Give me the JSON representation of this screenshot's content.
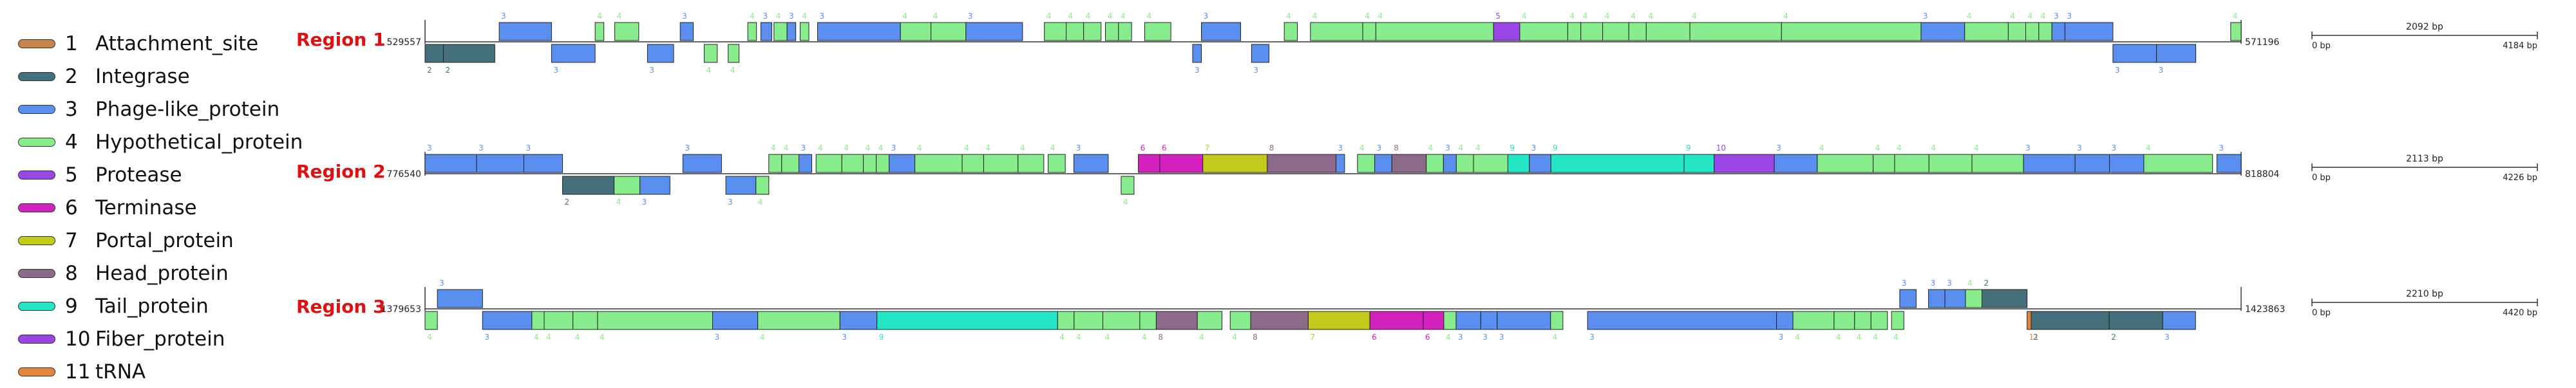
{
  "legend": [
    {
      "num": "1",
      "label": "Attachment_site",
      "color": "#c8834a"
    },
    {
      "num": "2",
      "label": "Integrase",
      "color": "#44707c"
    },
    {
      "num": "3",
      "label": "Phage-like_protein",
      "color": "#5a8ff0"
    },
    {
      "num": "4",
      "label": "Hypothetical_protein",
      "color": "#86ec8c"
    },
    {
      "num": "5",
      "label": "Protease",
      "color": "#9a46e6"
    },
    {
      "num": "6",
      "label": "Terminase",
      "color": "#d421c0"
    },
    {
      "num": "7",
      "label": "Portal_protein",
      "color": "#c2cb1a"
    },
    {
      "num": "8",
      "label": "Head_protein",
      "color": "#8e6a8a"
    },
    {
      "num": "9",
      "label": "Tail_protein",
      "color": "#22e6c6"
    },
    {
      "num": "10",
      "label": "Fiber_protein",
      "color": "#9a46e6"
    },
    {
      "num": "11",
      "label": "tRNA",
      "color": "#e3853a"
    }
  ],
  "chart_data": [
    {
      "type": "genome_map",
      "title": "Region 1",
      "start_label": "529557",
      "end_label": "571196",
      "scale_label": "2092 bp",
      "scale_start": "0 bp",
      "scale_end": "4184 bp",
      "span_bp": 41639,
      "genes": [
        {
          "s": 0,
          "e": 420,
          "strand": -1,
          "type": "2"
        },
        {
          "s": 420,
          "e": 1600,
          "strand": -1,
          "type": "2"
        },
        {
          "s": 1700,
          "e": 2900,
          "strand": 1,
          "type": "3"
        },
        {
          "s": 2900,
          "e": 3900,
          "strand": -1,
          "type": "3"
        },
        {
          "s": 3900,
          "e": 4100,
          "strand": 1,
          "type": "4"
        },
        {
          "s": 4350,
          "e": 4900,
          "strand": 1,
          "type": "4"
        },
        {
          "s": 5100,
          "e": 5700,
          "strand": -1,
          "type": "3"
        },
        {
          "s": 5850,
          "e": 6150,
          "strand": 1,
          "type": "3"
        },
        {
          "s": 6400,
          "e": 6700,
          "strand": -1,
          "type": "4"
        },
        {
          "s": 6950,
          "e": 7200,
          "strand": -1,
          "type": "4"
        },
        {
          "s": 7400,
          "e": 7600,
          "strand": 1,
          "type": "4"
        },
        {
          "s": 7700,
          "e": 7950,
          "strand": 1,
          "type": "3"
        },
        {
          "s": 8000,
          "e": 8300,
          "strand": 1,
          "type": "4"
        },
        {
          "s": 8300,
          "e": 8500,
          "strand": 1,
          "type": "3"
        },
        {
          "s": 8600,
          "e": 8800,
          "strand": 1,
          "type": "4"
        },
        {
          "s": 9000,
          "e": 10900,
          "strand": 1,
          "type": "3"
        },
        {
          "s": 10900,
          "e": 11600,
          "strand": 1,
          "type": "4"
        },
        {
          "s": 11600,
          "e": 12400,
          "strand": 1,
          "type": "4"
        },
        {
          "s": 12400,
          "e": 13700,
          "strand": 1,
          "type": "3"
        },
        {
          "s": 14200,
          "e": 14700,
          "strand": 1,
          "type": "4"
        },
        {
          "s": 14700,
          "e": 15100,
          "strand": 1,
          "type": "4"
        },
        {
          "s": 15100,
          "e": 15500,
          "strand": 1,
          "type": "4"
        },
        {
          "s": 15600,
          "e": 15900,
          "strand": 1,
          "type": "4"
        },
        {
          "s": 15900,
          "e": 16200,
          "strand": 1,
          "type": "4"
        },
        {
          "s": 16500,
          "e": 17100,
          "strand": 1,
          "type": "4"
        },
        {
          "s": 17600,
          "e": 17800,
          "strand": -1,
          "type": "3"
        },
        {
          "s": 17800,
          "e": 18700,
          "strand": 1,
          "type": "3"
        },
        {
          "s": 18950,
          "e": 19350,
          "strand": -1,
          "type": "3"
        },
        {
          "s": 19700,
          "e": 20000,
          "strand": 1,
          "type": "4"
        },
        {
          "s": 20300,
          "e": 21500,
          "strand": 1,
          "type": "4"
        },
        {
          "s": 21500,
          "e": 21800,
          "strand": 1,
          "type": "4"
        },
        {
          "s": 21800,
          "e": 24500,
          "strand": 1,
          "type": "4"
        },
        {
          "s": 24500,
          "e": 25100,
          "strand": 1,
          "type": "5"
        },
        {
          "s": 25100,
          "e": 26200,
          "strand": 1,
          "type": "4"
        },
        {
          "s": 26200,
          "e": 26500,
          "strand": 1,
          "type": "4"
        },
        {
          "s": 26500,
          "e": 27000,
          "strand": 1,
          "type": "4"
        },
        {
          "s": 27000,
          "e": 27600,
          "strand": 1,
          "type": "4"
        },
        {
          "s": 27600,
          "e": 28000,
          "strand": 1,
          "type": "4"
        },
        {
          "s": 28000,
          "e": 29000,
          "strand": 1,
          "type": "4"
        },
        {
          "s": 29000,
          "e": 31100,
          "strand": 1,
          "type": "4"
        },
        {
          "s": 31100,
          "e": 34300,
          "strand": 1,
          "type": "4"
        },
        {
          "s": 34300,
          "e": 35300,
          "strand": 1,
          "type": "3"
        },
        {
          "s": 35300,
          "e": 36300,
          "strand": 1,
          "type": "4"
        },
        {
          "s": 36300,
          "e": 36700,
          "strand": 1,
          "type": "4"
        },
        {
          "s": 36700,
          "e": 37000,
          "strand": 1,
          "type": "4"
        },
        {
          "s": 37000,
          "e": 37300,
          "strand": 1,
          "type": "4"
        },
        {
          "s": 37300,
          "e": 37600,
          "strand": 1,
          "type": "3"
        },
        {
          "s": 37600,
          "e": 38700,
          "strand": 1,
          "type": "3"
        },
        {
          "s": 38700,
          "e": 39700,
          "strand": -1,
          "type": "3"
        },
        {
          "s": 39700,
          "e": 40600,
          "strand": -1,
          "type": "3"
        },
        {
          "s": 41400,
          "e": 41639,
          "strand": 1,
          "type": "4"
        }
      ]
    },
    {
      "type": "genome_map",
      "title": "Region 2",
      "start_label": "776540",
      "end_label": "818804",
      "scale_label": "2113 bp",
      "scale_start": "0 bp",
      "scale_end": "4226 bp",
      "span_bp": 42264,
      "genes": [
        {
          "s": 0,
          "e": 1200,
          "strand": 1,
          "type": "3"
        },
        {
          "s": 1200,
          "e": 2300,
          "strand": 1,
          "type": "3"
        },
        {
          "s": 2300,
          "e": 3200,
          "strand": 1,
          "type": "3"
        },
        {
          "s": 3200,
          "e": 4400,
          "strand": -1,
          "type": "2"
        },
        {
          "s": 4400,
          "e": 5000,
          "strand": -1,
          "type": "4"
        },
        {
          "s": 5000,
          "e": 5700,
          "strand": -1,
          "type": "3"
        },
        {
          "s": 6000,
          "e": 6900,
          "strand": 1,
          "type": "3"
        },
        {
          "s": 7000,
          "e": 7700,
          "strand": -1,
          "type": "3"
        },
        {
          "s": 7700,
          "e": 8000,
          "strand": -1,
          "type": "4"
        },
        {
          "s": 8000,
          "e": 8300,
          "strand": 1,
          "type": "4"
        },
        {
          "s": 8300,
          "e": 8700,
          "strand": 1,
          "type": "4"
        },
        {
          "s": 8700,
          "e": 9000,
          "strand": 1,
          "type": "3"
        },
        {
          "s": 9100,
          "e": 9700,
          "strand": 1,
          "type": "4"
        },
        {
          "s": 9700,
          "e": 10200,
          "strand": 1,
          "type": "4"
        },
        {
          "s": 10200,
          "e": 10500,
          "strand": 1,
          "type": "4"
        },
        {
          "s": 10500,
          "e": 10800,
          "strand": 1,
          "type": "4"
        },
        {
          "s": 10800,
          "e": 11400,
          "strand": 1,
          "type": "3"
        },
        {
          "s": 11400,
          "e": 12500,
          "strand": 1,
          "type": "4"
        },
        {
          "s": 12500,
          "e": 13000,
          "strand": 1,
          "type": "4"
        },
        {
          "s": 13000,
          "e": 13800,
          "strand": 1,
          "type": "4"
        },
        {
          "s": 13800,
          "e": 14400,
          "strand": 1,
          "type": "4"
        },
        {
          "s": 14500,
          "e": 14900,
          "strand": 1,
          "type": "4"
        },
        {
          "s": 15100,
          "e": 15900,
          "strand": 1,
          "type": "3"
        },
        {
          "s": 16200,
          "e": 16500,
          "strand": -1,
          "type": "4"
        },
        {
          "s": 16600,
          "e": 17100,
          "strand": 1,
          "type": "6"
        },
        {
          "s": 17100,
          "e": 18100,
          "strand": 1,
          "type": "6"
        },
        {
          "s": 18100,
          "e": 19600,
          "strand": 1,
          "type": "7"
        },
        {
          "s": 19600,
          "e": 21200,
          "strand": 1,
          "type": "8"
        },
        {
          "s": 21200,
          "e": 21400,
          "strand": 1,
          "type": "3"
        },
        {
          "s": 21700,
          "e": 22100,
          "strand": 1,
          "type": "4"
        },
        {
          "s": 22100,
          "e": 22500,
          "strand": 1,
          "type": "3"
        },
        {
          "s": 22500,
          "e": 23300,
          "strand": 1,
          "type": "8"
        },
        {
          "s": 23300,
          "e": 23700,
          "strand": 1,
          "type": "4"
        },
        {
          "s": 23700,
          "e": 24000,
          "strand": 1,
          "type": "3"
        },
        {
          "s": 24000,
          "e": 24400,
          "strand": 1,
          "type": "4"
        },
        {
          "s": 24400,
          "e": 25200,
          "strand": 1,
          "type": "4"
        },
        {
          "s": 25200,
          "e": 25700,
          "strand": 1,
          "type": "9"
        },
        {
          "s": 25700,
          "e": 26200,
          "strand": 1,
          "type": "3"
        },
        {
          "s": 26200,
          "e": 29300,
          "strand": 1,
          "type": "9"
        },
        {
          "s": 29300,
          "e": 30000,
          "strand": 1,
          "type": "9"
        },
        {
          "s": 30000,
          "e": 31400,
          "strand": 1,
          "type": "10"
        },
        {
          "s": 31400,
          "e": 32400,
          "strand": 1,
          "type": "3"
        },
        {
          "s": 32400,
          "e": 33700,
          "strand": 1,
          "type": "4"
        },
        {
          "s": 33700,
          "e": 34200,
          "strand": 1,
          "type": "4"
        },
        {
          "s": 34200,
          "e": 35000,
          "strand": 1,
          "type": "4"
        },
        {
          "s": 35000,
          "e": 36000,
          "strand": 1,
          "type": "4"
        },
        {
          "s": 36000,
          "e": 37200,
          "strand": 1,
          "type": "4"
        },
        {
          "s": 37200,
          "e": 38400,
          "strand": 1,
          "type": "3"
        },
        {
          "s": 38400,
          "e": 39200,
          "strand": 1,
          "type": "3"
        },
        {
          "s": 39200,
          "e": 40000,
          "strand": 1,
          "type": "3"
        },
        {
          "s": 40000,
          "e": 41600,
          "strand": 1,
          "type": "4"
        },
        {
          "s": 41700,
          "e": 42264,
          "strand": 1,
          "type": "3"
        }
      ]
    },
    {
      "type": "genome_map",
      "title": "Region 3",
      "start_label": "1379653",
      "end_label": "1423863",
      "scale_label": "2210 bp",
      "scale_start": "0 bp",
      "scale_end": "4420 bp",
      "span_bp": 44210,
      "genes": [
        {
          "s": 0,
          "e": 300,
          "strand": -1,
          "type": "4"
        },
        {
          "s": 300,
          "e": 1400,
          "strand": 1,
          "type": "3"
        },
        {
          "s": 1400,
          "e": 2600,
          "strand": -1,
          "type": "3"
        },
        {
          "s": 2600,
          "e": 2900,
          "strand": -1,
          "type": "4"
        },
        {
          "s": 2900,
          "e": 3600,
          "strand": -1,
          "type": "4"
        },
        {
          "s": 3600,
          "e": 4200,
          "strand": -1,
          "type": "4"
        },
        {
          "s": 4200,
          "e": 7000,
          "strand": -1,
          "type": "4"
        },
        {
          "s": 7000,
          "e": 8100,
          "strand": -1,
          "type": "3"
        },
        {
          "s": 8100,
          "e": 10100,
          "strand": -1,
          "type": "4"
        },
        {
          "s": 10100,
          "e": 11000,
          "strand": -1,
          "type": "3"
        },
        {
          "s": 11000,
          "e": 15400,
          "strand": -1,
          "type": "9"
        },
        {
          "s": 15400,
          "e": 15800,
          "strand": -1,
          "type": "4"
        },
        {
          "s": 15800,
          "e": 16500,
          "strand": -1,
          "type": "4"
        },
        {
          "s": 16500,
          "e": 17400,
          "strand": -1,
          "type": "4"
        },
        {
          "s": 17400,
          "e": 17800,
          "strand": -1,
          "type": "4"
        },
        {
          "s": 17800,
          "e": 18800,
          "strand": -1,
          "type": "8"
        },
        {
          "s": 18800,
          "e": 19400,
          "strand": -1,
          "type": "4"
        },
        {
          "s": 19600,
          "e": 20100,
          "strand": -1,
          "type": "4"
        },
        {
          "s": 20100,
          "e": 21500,
          "strand": -1,
          "type": "8"
        },
        {
          "s": 21500,
          "e": 23000,
          "strand": -1,
          "type": "7"
        },
        {
          "s": 23000,
          "e": 24300,
          "strand": -1,
          "type": "6"
        },
        {
          "s": 24300,
          "e": 24800,
          "strand": -1,
          "type": "6"
        },
        {
          "s": 24800,
          "e": 25100,
          "strand": -1,
          "type": "4"
        },
        {
          "s": 25100,
          "e": 25700,
          "strand": -1,
          "type": "3"
        },
        {
          "s": 25700,
          "e": 26100,
          "strand": -1,
          "type": "3"
        },
        {
          "s": 26100,
          "e": 27400,
          "strand": -1,
          "type": "3"
        },
        {
          "s": 27400,
          "e": 27700,
          "strand": -1,
          "type": "4"
        },
        {
          "s": 28300,
          "e": 32900,
          "strand": -1,
          "type": "3"
        },
        {
          "s": 32900,
          "e": 33300,
          "strand": -1,
          "type": "3"
        },
        {
          "s": 33300,
          "e": 34300,
          "strand": -1,
          "type": "4"
        },
        {
          "s": 34300,
          "e": 34800,
          "strand": -1,
          "type": "4"
        },
        {
          "s": 34800,
          "e": 35200,
          "strand": -1,
          "type": "4"
        },
        {
          "s": 35200,
          "e": 35600,
          "strand": -1,
          "type": "4"
        },
        {
          "s": 35700,
          "e": 36000,
          "strand": -1,
          "type": "4"
        },
        {
          "s": 35900,
          "e": 36300,
          "strand": 1,
          "type": "3"
        },
        {
          "s": 36600,
          "e": 37000,
          "strand": 1,
          "type": "3"
        },
        {
          "s": 37000,
          "e": 37500,
          "strand": 1,
          "type": "3"
        },
        {
          "s": 37500,
          "e": 37900,
          "strand": 1,
          "type": "4"
        },
        {
          "s": 37900,
          "e": 39000,
          "strand": 1,
          "type": "2"
        },
        {
          "s": 39000,
          "e": 39100,
          "strand": -1,
          "type": "11"
        },
        {
          "s": 39100,
          "e": 41000,
          "strand": -1,
          "type": "2"
        },
        {
          "s": 41000,
          "e": 42300,
          "strand": -1,
          "type": "2"
        },
        {
          "s": 42300,
          "e": 43100,
          "strand": -1,
          "type": "3"
        }
      ]
    }
  ]
}
